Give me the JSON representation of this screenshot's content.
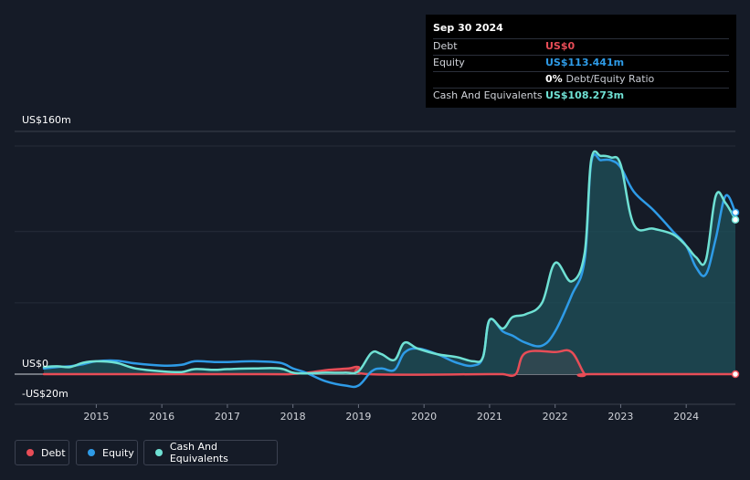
{
  "tooltip": {
    "date": "Sep 30 2024",
    "rows": [
      {
        "label": "Debt",
        "value": "US$0",
        "color": "#e84d57"
      },
      {
        "label": "Equity",
        "value": "US$113.441m",
        "color": "#2e9be7"
      },
      {
        "label": "",
        "value": "0%",
        "suffix": "Debt/Equity Ratio",
        "color": "#ffffff"
      },
      {
        "label": "Cash And Equivalents",
        "value": "US$108.273m",
        "color": "#6fe1d4"
      }
    ]
  },
  "legend": [
    {
      "label": "Debt",
      "color": "#e84d57"
    },
    {
      "label": "Equity",
      "color": "#2e9be7"
    },
    {
      "label": "Cash And Equivalents",
      "color": "#6fe1d4"
    }
  ],
  "chart_data": {
    "type": "line",
    "xlabel": "",
    "ylabel": "",
    "y_unit": "US$m",
    "ylim": [
      -20,
      160
    ],
    "y_tick_labels": [
      {
        "value": 160,
        "label": "US$160m"
      },
      {
        "value": 0,
        "label": "US$0"
      },
      {
        "value": -20,
        "label": "-US$20m"
      }
    ],
    "x_range": [
      2014.2,
      2024.75
    ],
    "x_ticks": [
      2015,
      2016,
      2017,
      2018,
      2019,
      2020,
      2021,
      2022,
      2023,
      2024
    ],
    "grid": true,
    "legend_position": "bottom-left",
    "series": [
      {
        "name": "Debt",
        "color": "#e84d57",
        "fill": "#7a2e37",
        "x": [
          2014.2,
          2017.5,
          2017.95,
          2018.3,
          2018.55,
          2018.85,
          2019.0,
          2019.15,
          2021.0,
          2021.2,
          2021.4,
          2021.55,
          2022.0,
          2022.25,
          2022.45,
          2022.55,
          2024.75
        ],
        "y": [
          0,
          0,
          0,
          1.5,
          3,
          4,
          5,
          0,
          0,
          0,
          0,
          15,
          15.5,
          15.5,
          0,
          0,
          0
        ]
      },
      {
        "name": "Equity",
        "color": "#2e9be7",
        "x": [
          2014.2,
          2014.4,
          2014.6,
          2014.8,
          2015.0,
          2015.3,
          2015.6,
          2016.0,
          2016.3,
          2016.5,
          2016.8,
          2017.0,
          2017.4,
          2017.8,
          2018.0,
          2018.2,
          2018.5,
          2018.8,
          2019.0,
          2019.2,
          2019.35,
          2019.55,
          2019.7,
          2019.9,
          2020.2,
          2020.5,
          2020.75,
          2020.9,
          2021.0,
          2021.2,
          2021.35,
          2021.55,
          2021.8,
          2022.0,
          2022.25,
          2022.45,
          2022.55,
          2022.7,
          2022.85,
          2023.0,
          2023.2,
          2023.5,
          2023.8,
          2024.0,
          2024.15,
          2024.3,
          2024.45,
          2024.6,
          2024.75
        ],
        "y": [
          4,
          5,
          5.5,
          7,
          9,
          9.5,
          7.5,
          6,
          6.5,
          9,
          8.5,
          8.5,
          9,
          8,
          4,
          1,
          -5,
          -8,
          -8,
          2,
          4,
          3,
          15,
          18,
          14,
          8,
          6,
          12,
          38,
          30,
          27,
          22,
          20,
          30,
          55,
          80,
          148,
          150,
          150,
          145,
          128,
          115,
          100,
          90,
          75,
          70,
          95,
          125,
          113.4
        ]
      },
      {
        "name": "Cash And Equivalents",
        "color": "#6fe1d4",
        "fill": "#1e4d57",
        "x": [
          2014.2,
          2014.4,
          2014.6,
          2014.8,
          2015.0,
          2015.3,
          2015.6,
          2016.0,
          2016.3,
          2016.5,
          2016.8,
          2017.0,
          2017.4,
          2017.8,
          2018.0,
          2018.2,
          2018.5,
          2018.8,
          2019.0,
          2019.2,
          2019.35,
          2019.55,
          2019.7,
          2019.9,
          2020.2,
          2020.5,
          2020.75,
          2020.9,
          2021.0,
          2021.2,
          2021.35,
          2021.55,
          2021.8,
          2022.0,
          2022.25,
          2022.45,
          2022.55,
          2022.7,
          2022.85,
          2023.0,
          2023.2,
          2023.5,
          2023.8,
          2024.0,
          2024.15,
          2024.3,
          2024.45,
          2024.6,
          2024.75
        ],
        "y": [
          5,
          5.5,
          5,
          8,
          9,
          8,
          4,
          2,
          1.5,
          3.5,
          3,
          3.5,
          4,
          4,
          1,
          0.5,
          1,
          1,
          2,
          15,
          14,
          10,
          22,
          18,
          14,
          12,
          9,
          12,
          38,
          32,
          40,
          42,
          50,
          78,
          65,
          85,
          150,
          153,
          152,
          147,
          105,
          102,
          98,
          90,
          82,
          80,
          125,
          120,
          108.3
        ]
      }
    ]
  }
}
